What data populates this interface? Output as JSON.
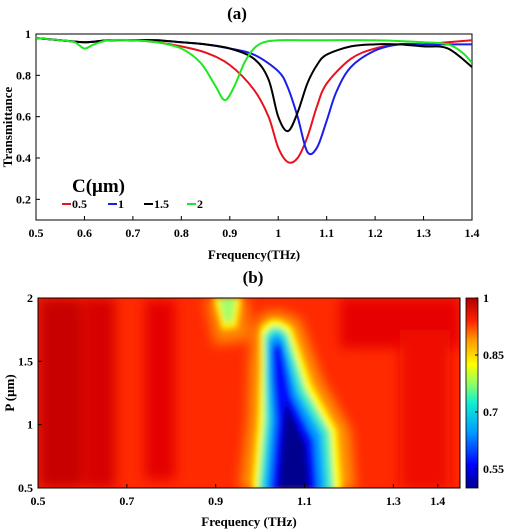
{
  "chart_data": [
    {
      "panel_label": "(a)",
      "type": "line",
      "xlabel": "Frequency(THz)",
      "ylabel": "Transmittance",
      "xlim": [
        0.5,
        1.4
      ],
      "ylim": [
        0.1,
        1.0
      ],
      "xticks": [
        "0.5",
        "0.6",
        "0.7",
        "0.8",
        "0.9",
        "1",
        "1.1",
        "1.2",
        "1.3",
        "1.4"
      ],
      "yticks": [
        "0.2",
        "0.4",
        "0.6",
        "0.8",
        "1"
      ],
      "legend_title": "C(μm)",
      "legend_placement": "bottom-left",
      "series": [
        {
          "name": "0.5",
          "color": "#e8111d",
          "x": [
            0.5,
            0.55,
            0.6,
            0.65,
            0.7,
            0.75,
            0.8,
            0.85,
            0.9,
            0.95,
            0.98,
            1.0,
            1.02,
            1.04,
            1.06,
            1.08,
            1.1,
            1.15,
            1.2,
            1.25,
            1.3,
            1.35,
            1.4
          ],
          "y": [
            0.98,
            0.97,
            0.96,
            0.97,
            0.97,
            0.96,
            0.94,
            0.91,
            0.85,
            0.73,
            0.6,
            0.45,
            0.38,
            0.4,
            0.5,
            0.65,
            0.76,
            0.88,
            0.93,
            0.95,
            0.95,
            0.96,
            0.97
          ]
        },
        {
          "name": "1",
          "color": "#1a1ee8",
          "x": [
            0.5,
            0.55,
            0.6,
            0.65,
            0.7,
            0.75,
            0.8,
            0.85,
            0.9,
            0.95,
            1.0,
            1.02,
            1.04,
            1.06,
            1.08,
            1.1,
            1.12,
            1.15,
            1.2,
            1.25,
            1.3,
            1.35,
            1.4
          ],
          "y": [
            0.98,
            0.97,
            0.96,
            0.97,
            0.97,
            0.97,
            0.96,
            0.95,
            0.93,
            0.9,
            0.82,
            0.74,
            0.6,
            0.43,
            0.45,
            0.58,
            0.72,
            0.84,
            0.92,
            0.95,
            0.95,
            0.95,
            0.95
          ]
        },
        {
          "name": "1.5",
          "color": "#000000",
          "x": [
            0.5,
            0.55,
            0.6,
            0.65,
            0.7,
            0.75,
            0.8,
            0.85,
            0.9,
            0.95,
            0.98,
            1.0,
            1.02,
            1.04,
            1.06,
            1.08,
            1.1,
            1.15,
            1.2,
            1.25,
            1.3,
            1.35,
            1.4
          ],
          "y": [
            0.98,
            0.97,
            0.96,
            0.97,
            0.97,
            0.97,
            0.96,
            0.95,
            0.93,
            0.88,
            0.78,
            0.6,
            0.53,
            0.62,
            0.76,
            0.85,
            0.9,
            0.94,
            0.95,
            0.95,
            0.94,
            0.93,
            0.84
          ]
        },
        {
          "name": "2",
          "color": "#1ee81e",
          "x": [
            0.5,
            0.55,
            0.58,
            0.6,
            0.62,
            0.65,
            0.7,
            0.75,
            0.8,
            0.84,
            0.87,
            0.89,
            0.91,
            0.93,
            0.95,
            0.97,
            1.0,
            1.05,
            1.1,
            1.2,
            1.3,
            1.35,
            1.38,
            1.4
          ],
          "y": [
            0.98,
            0.97,
            0.96,
            0.93,
            0.95,
            0.97,
            0.97,
            0.96,
            0.93,
            0.86,
            0.75,
            0.68,
            0.75,
            0.86,
            0.93,
            0.96,
            0.97,
            0.97,
            0.97,
            0.97,
            0.96,
            0.95,
            0.91,
            0.86
          ]
        }
      ]
    },
    {
      "panel_label": "(b)",
      "type": "heatmap",
      "xlabel": "Frequency (THz)",
      "ylabel": "P (μm)",
      "xlim": [
        0.5,
        1.45
      ],
      "ylim": [
        0.5,
        2.0
      ],
      "xticks": [
        "0.5",
        "0.7",
        "0.9",
        "1.1",
        "1.3",
        "1.4"
      ],
      "yticks": [
        "0.5",
        "1",
        "1.5",
        "2"
      ],
      "colorbar_ticks": [
        "1",
        "0.85",
        "0.7",
        "0.55"
      ],
      "colorbar_range": [
        0.5,
        1.0
      ],
      "features": [
        {
          "description_value": "min transmittance ~0.5 at P 0.5-1.2",
          "x": 1.14,
          "y": 0.85,
          "z": 0.5
        },
        {
          "x": 1.1,
          "y": 1.45,
          "z": 0.58
        },
        {
          "x": 0.96,
          "y": 1.95,
          "z": 0.75
        }
      ]
    }
  ]
}
